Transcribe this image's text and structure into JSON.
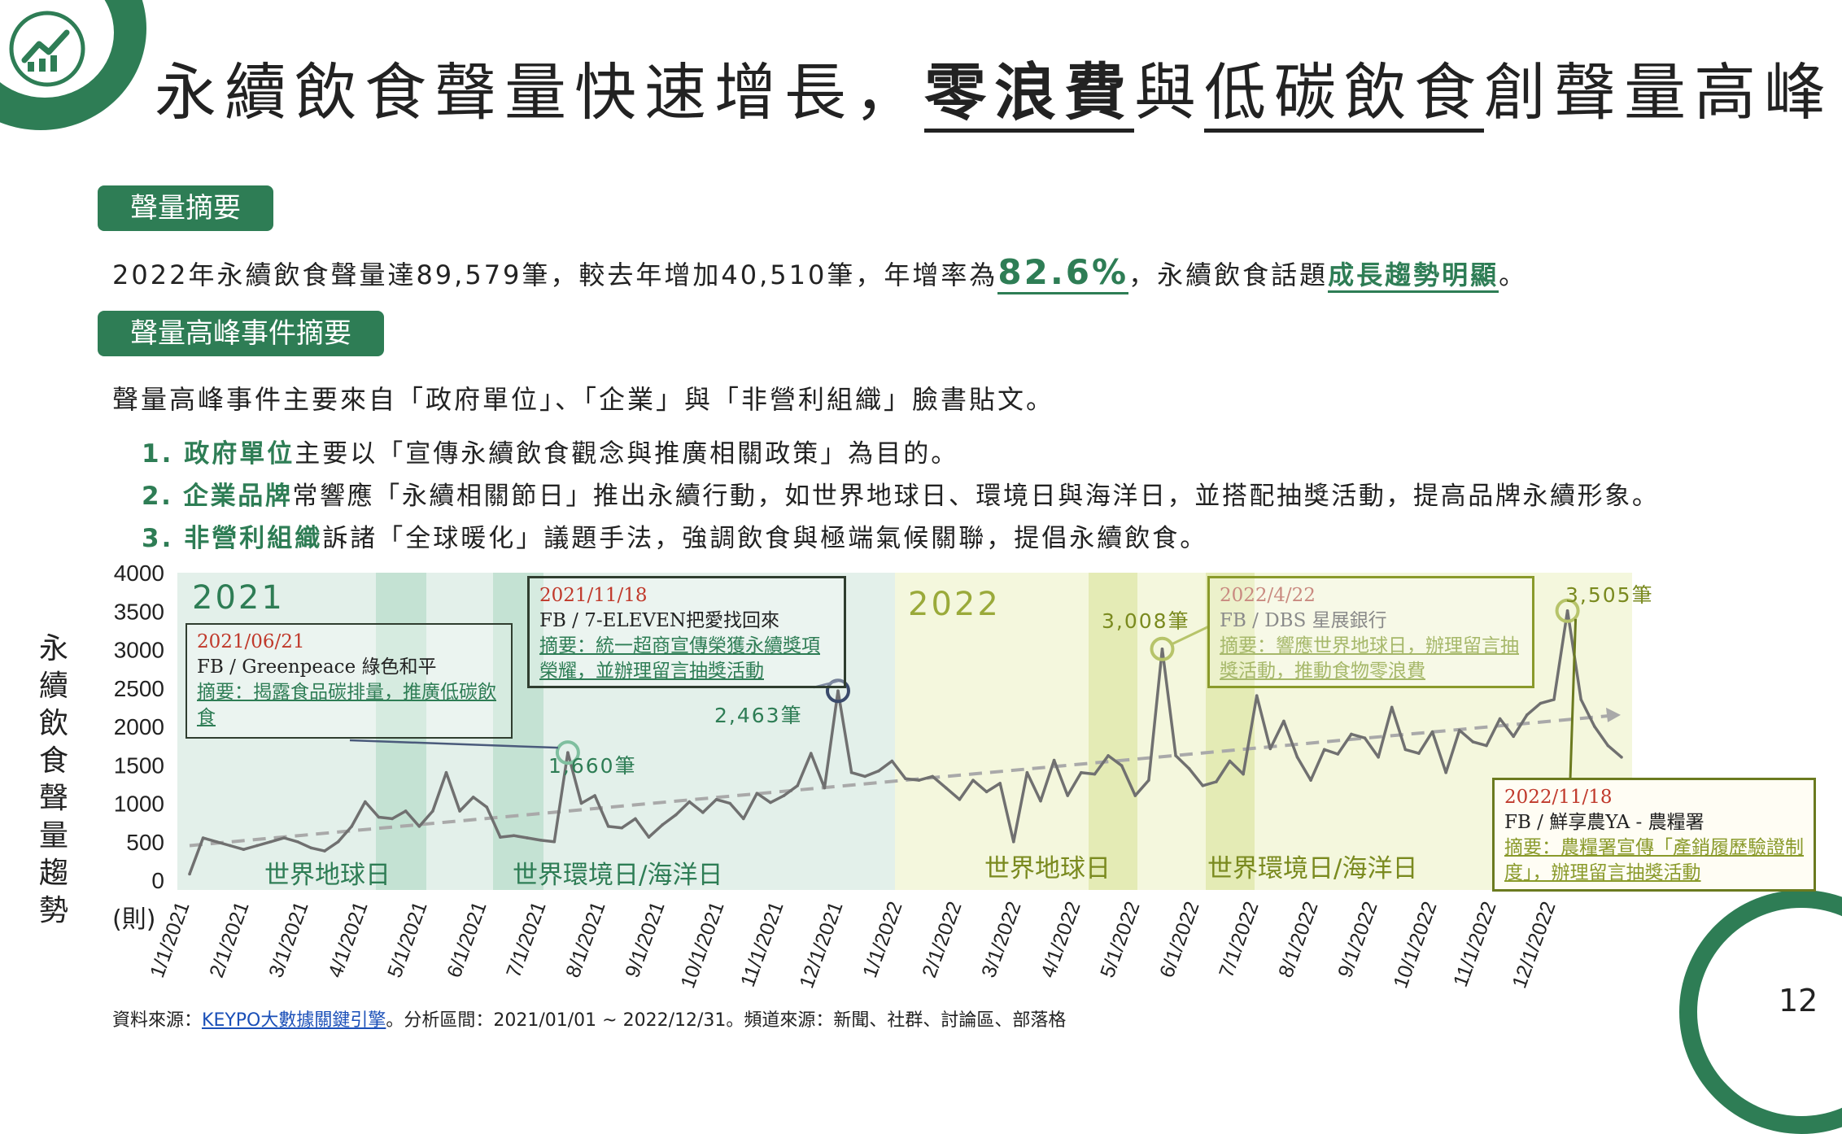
{
  "title": {
    "part1": "永續飲食聲量快速增長，",
    "part2": "零浪費",
    "part3": "與",
    "part4": "低碳飲食",
    "part5": "創聲量高峰！"
  },
  "sections": {
    "summary_label": "聲量摘要",
    "peaks_label": "聲量高峰事件摘要"
  },
  "summary": {
    "text1": "2022年永續飲食聲量達89,579筆，較去年增加40,510筆，年增率為",
    "rate": "82.6%",
    "text2": "，永續飲食話題",
    "trend": "成長趨勢明顯",
    "text3": "。"
  },
  "peaks": {
    "intro": "聲量高峰事件主要來自「政府單位」、「企業」與「非營利組織」臉書貼文。",
    "items": [
      {
        "num": "1.",
        "key": "政府單位",
        "text": "主要以「宣傳永續飲食觀念與推廣相關政策」為目的。"
      },
      {
        "num": "2.",
        "key": "企業品牌",
        "text": "常響應「永續相關節日」推出永續行動，如世界地球日、環境日與海洋日，並搭配抽獎活動，提高品牌永續形象。"
      },
      {
        "num": "3.",
        "key": "非營利組織",
        "text": "訴諸「全球暖化」議題手法，強調飲食與極端氣候關聯，提倡永續飲食。"
      }
    ]
  },
  "chart_data": {
    "type": "line",
    "ylabel": "永續飲食聲量趨勢",
    "yunit": "(則)",
    "ylim": [
      0,
      4000
    ],
    "yticks": [
      "0",
      "500",
      "1000",
      "1500",
      "2000",
      "2500",
      "3000",
      "3500",
      "4000"
    ],
    "xticks": [
      "1/1/2021",
      "2/1/2021",
      "3/1/2021",
      "4/1/2021",
      "5/1/2021",
      "6/1/2021",
      "7/1/2021",
      "8/1/2021",
      "9/1/2021",
      "10/1/2021",
      "11/1/2021",
      "12/1/2021",
      "1/1/2022",
      "2/1/2022",
      "3/1/2022",
      "4/1/2022",
      "5/1/2022",
      "6/1/2022",
      "7/1/2022",
      "8/1/2022",
      "9/1/2022",
      "10/1/2022",
      "11/1/2022",
      "12/1/2022"
    ],
    "year_labels": [
      "2021",
      "2022"
    ],
    "event_labels": [
      "世界地球日",
      "世界環境日/海洋日",
      "世界地球日",
      "世界環境日/海洋日"
    ],
    "series": [
      {
        "values": [
          80,
          550,
          500,
          450,
          400,
          450,
          500,
          550,
          500,
          420,
          380,
          500,
          700,
          1020,
          820,
          800,
          900,
          700,
          900,
          1400,
          900,
          1080,
          950,
          560,
          580,
          550,
          520,
          500,
          1660,
          1000,
          1100,
          700,
          680,
          800,
          560,
          720,
          850,
          1020,
          880,
          1050,
          1000,
          800,
          1130,
          1010,
          1100,
          1230,
          1650,
          1200,
          2463,
          1400,
          1350,
          1420,
          1550,
          1320,
          1300,
          1350,
          1200,
          1050,
          1300,
          1150,
          1260,
          500,
          1400,
          1030,
          1560,
          1100,
          1400,
          1380,
          1620,
          1490,
          1100,
          1300,
          3008,
          1620,
          1450,
          1230,
          1280,
          1550,
          1380,
          2400,
          1710,
          2070,
          1600,
          1300,
          1700,
          1640,
          1900,
          1850,
          1600,
          2250,
          1700,
          1650,
          1930,
          1400,
          1950,
          1800,
          1750,
          2100,
          1870,
          2150,
          2300,
          2350,
          3505,
          2350,
          2000,
          1750,
          1600
        ]
      }
    ],
    "trend_line": {
      "start": 450,
      "end": 2150
    },
    "peaks": [
      {
        "value": 1660,
        "label": "1,660筆"
      },
      {
        "value": 2463,
        "label": "2,463筆"
      },
      {
        "value": 3008,
        "label": "3,008筆"
      },
      {
        "value": 3505,
        "label": "3,505筆"
      }
    ],
    "annotations": [
      {
        "date": "2021/06/21",
        "source": "FB / Greenpeace 綠色和平",
        "summary": "摘要：揭露食品碳排量，推廣低碳飲食"
      },
      {
        "date": "2021/11/18",
        "source": "FB / 7-ELEVEN把愛找回來",
        "summary": "摘要：統一超商宣傳榮獲永續獎項榮耀，並辦理留言抽獎活動"
      },
      {
        "date": "2022/4/22",
        "source": "FB / DBS 星展銀行",
        "summary": "摘要：響應世界地球日，辦理留言抽獎活動，推動食物零浪費"
      },
      {
        "date": "2022/11/18",
        "source": "FB / 鮮享農YA - 農糧署",
        "summary": "摘要：農糧署宣傳「產銷履歷驗證制度」，辦理留言抽獎活動"
      }
    ]
  },
  "source": {
    "label": "資料來源：",
    "link": "KEYPO大數據關鍵引擎",
    "rest": "。分析區間：2021/01/01 ~ 2022/12/31。頻道來源：新聞、社群、討論區、部落格"
  },
  "page_number": "12",
  "colors": {
    "green": "#2e7d55",
    "olive": "#8a9a2b",
    "navy": "#3a4a6b",
    "red": "#c0392b"
  }
}
